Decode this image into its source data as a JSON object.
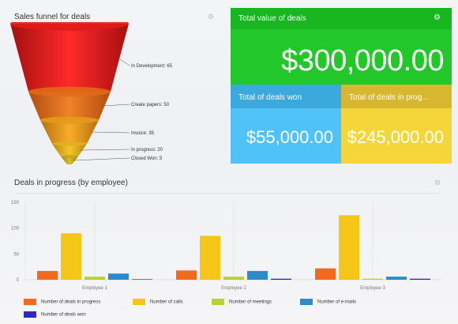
{
  "funnel_panel": {
    "title": "Sales funnel for deals",
    "gear_icon": "gear-icon",
    "stages": [
      {
        "label": "In Development: 65",
        "color": "#e01b1b"
      },
      {
        "label": "Create papers: 50",
        "color": "#e06a18"
      },
      {
        "label": "Invoice: 35",
        "color": "#e69a1a"
      },
      {
        "label": "In progress: 20",
        "color": "#e2b11c"
      },
      {
        "label": "Closed Won: 5",
        "color": "#c7a61a"
      }
    ]
  },
  "tiles": {
    "total": {
      "title": "Total value of deals",
      "value": "$300,000.00",
      "icon": "gear-icon",
      "color": "#22c829"
    },
    "won": {
      "title": "Total of deals won",
      "value": "$55,000.00",
      "color": "#4fc3f7"
    },
    "in_progress": {
      "title": "Total of deals in prog...",
      "value": "$245,000.00",
      "color": "#f4d63b"
    }
  },
  "bar_panel": {
    "title": "Deals in progress (by employee)",
    "gear_icon": "gear-icon"
  },
  "chart_data": {
    "type": "bar",
    "title": "Deals in progress (by employee)",
    "categories": [
      "Employee 1",
      "Employee 2",
      "Employee 3"
    ],
    "ylim": [
      0,
      150
    ],
    "yticks": [
      0,
      50,
      100,
      150
    ],
    "series": [
      {
        "name": "Number of deals in progress",
        "color": "#f26a1b",
        "values": [
          17,
          18,
          22
        ]
      },
      {
        "name": "Number of calls",
        "color": "#f5c518",
        "values": [
          90,
          85,
          125
        ]
      },
      {
        "name": "Number of meetings",
        "color": "#b5d334",
        "values": [
          6,
          6,
          2
        ]
      },
      {
        "name": "Number of e-mails",
        "color": "#2e8bc9",
        "values": [
          12,
          17,
          6
        ]
      },
      {
        "name": "Number of deals won",
        "color": "#2d2bbf",
        "values": [
          1,
          2,
          2
        ]
      }
    ],
    "grid": false,
    "legend": "bottom"
  }
}
